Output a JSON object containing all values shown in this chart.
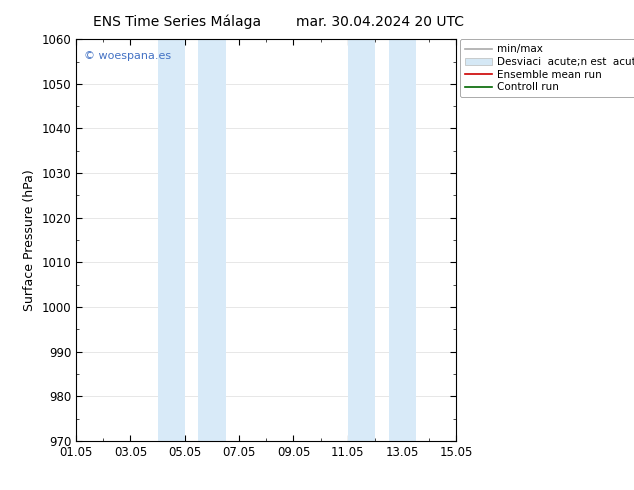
{
  "title_left": "ENS Time Series Málaga",
  "title_right": "mar. 30.04.2024 20 UTC",
  "ylabel": "Surface Pressure (hPa)",
  "ylim": [
    970,
    1060
  ],
  "yticks": [
    970,
    980,
    990,
    1000,
    1010,
    1020,
    1030,
    1040,
    1050,
    1060
  ],
  "xtick_labels": [
    "01.05",
    "03.05",
    "05.05",
    "07.05",
    "09.05",
    "11.05",
    "13.05",
    "15.05"
  ],
  "xtick_positions": [
    0,
    2,
    4,
    6,
    8,
    10,
    12,
    14
  ],
  "xlim": [
    0,
    14
  ],
  "shade_regions": [
    {
      "xmin": 3.0,
      "xmax": 4.0,
      "color": "#d8eaf8"
    },
    {
      "xmin": 4.0,
      "xmax": 5.5,
      "color": "#d8eaf8"
    },
    {
      "xmin": 10.0,
      "xmax": 11.0,
      "color": "#d8eaf8"
    },
    {
      "xmin": 11.0,
      "xmax": 12.0,
      "color": "#d8eaf8"
    }
  ],
  "watermark": "© woespana.es",
  "watermark_color": "#4472c4",
  "background_color": "#ffffff",
  "plot_bg_color": "#ffffff",
  "grid_color": "#dddddd",
  "figsize": [
    6.34,
    4.9
  ],
  "dpi": 100,
  "legend_labels": [
    "min/max",
    "Desviaci  acute;n est  acute;ndar",
    "Ensemble mean run",
    "Controll run"
  ],
  "legend_colors": [
    "#999999",
    "#cccccc",
    "#ff0000",
    "#008000"
  ]
}
